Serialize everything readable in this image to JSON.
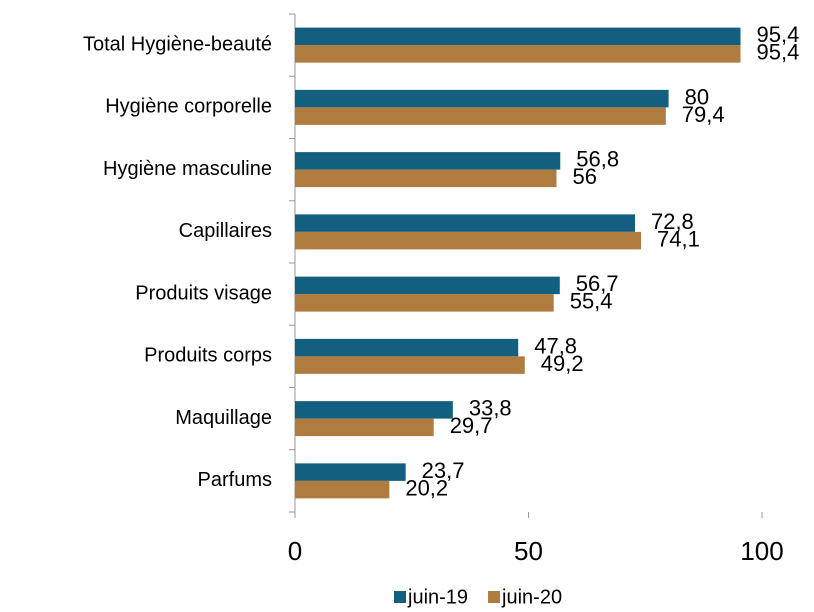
{
  "chart_data": {
    "type": "barh",
    "categories": [
      "Total Hygiène-beauté",
      "Hygiène corporelle",
      "Hygiène masculine",
      "Capillaires",
      "Produits visage",
      "Produits corps",
      "Maquillage",
      "Parfums"
    ],
    "series": [
      {
        "name": "juin-19",
        "color": "#135f7f",
        "values": [
          95.4,
          80,
          56.8,
          72.8,
          56.7,
          47.8,
          33.8,
          23.7
        ],
        "value_labels": [
          "95,4",
          "80",
          "56,8",
          "72,8",
          "56,7",
          "47,8",
          "33,8",
          "23,7"
        ]
      },
      {
        "name": "juin-20",
        "color": "#b07b3f",
        "values": [
          95.4,
          79.4,
          56,
          74.1,
          55.4,
          49.2,
          29.7,
          20.2
        ],
        "value_labels": [
          "95,4",
          "79,4",
          "56",
          "74,1",
          "55,4",
          "49,2",
          "29,7",
          "20,2"
        ]
      }
    ],
    "xlim": [
      0,
      100
    ],
    "xticks": [
      0,
      50,
      100
    ],
    "grid": false,
    "legend": "bottom"
  }
}
